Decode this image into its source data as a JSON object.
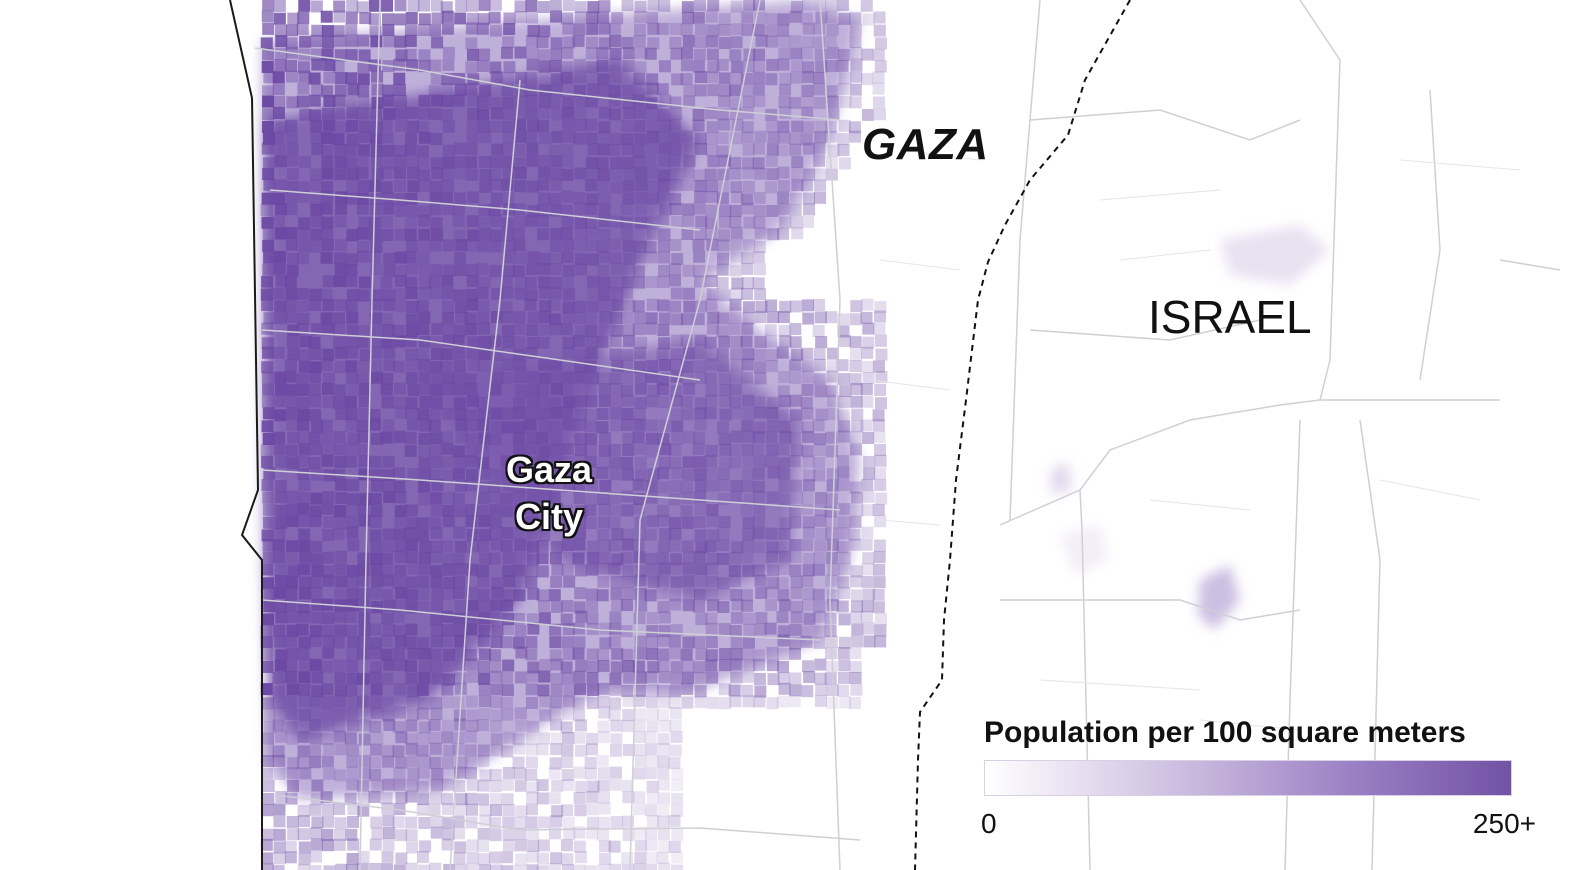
{
  "labels": {
    "region_gaza": "GAZA",
    "region_israel": "ISRAEL",
    "city": "Gaza City"
  },
  "legend": {
    "title": "Population per 100 square meters",
    "min_label": "0",
    "max_label": "250+"
  },
  "colors": {
    "density_high": "#6b48a3",
    "density_low": "#ffffff",
    "border": "#111111",
    "roads": "#cfcfd6"
  }
}
